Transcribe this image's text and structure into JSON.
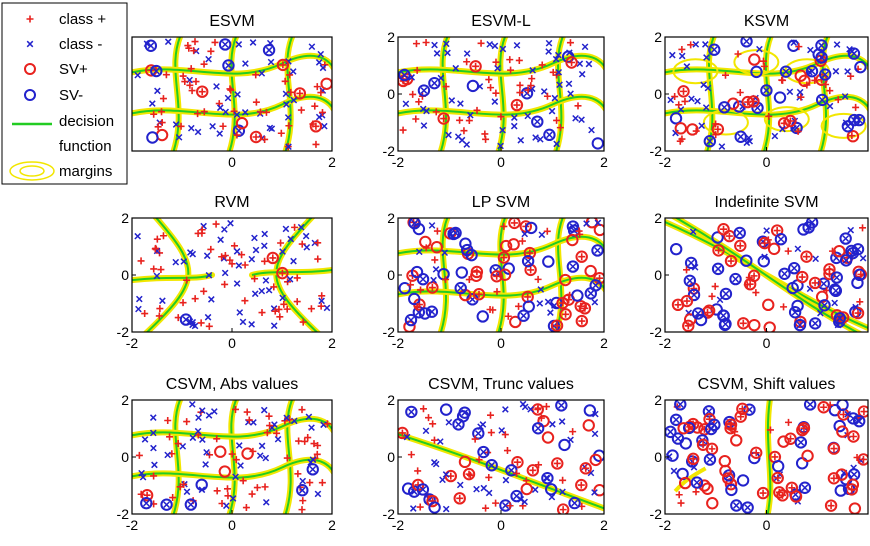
{
  "legend": {
    "items": [
      {
        "label": "class +",
        "marker": "plus",
        "color": "#e8221e"
      },
      {
        "label": "class -",
        "marker": "x",
        "color": "#2222cc"
      },
      {
        "label": "SV+",
        "marker": "circle",
        "color": "#e8221e"
      },
      {
        "label": "SV-",
        "marker": "circle",
        "color": "#2222cc"
      },
      {
        "label": "decision",
        "label2": "function",
        "marker": "line",
        "color": "#22cc22"
      },
      {
        "label": "margins",
        "marker": "ellipse",
        "color": "#f2e600"
      }
    ]
  },
  "colors": {
    "class_pos": "#e8221e",
    "class_neg": "#2222cc",
    "decision": "#22cc22",
    "margin": "#f2e600"
  },
  "chart_data": [
    {
      "type": "scatter",
      "title": "ESVM",
      "xlim": [
        -2,
        2
      ],
      "ylim": [
        -2,
        2
      ],
      "xticks": [],
      "yticks": [],
      "last_xtick_label": "2",
      "sv_level": "low",
      "pattern": "checker"
    },
    {
      "type": "scatter",
      "title": "ESVM-L",
      "xlim": [
        -2,
        2
      ],
      "ylim": [
        -2,
        2
      ],
      "xticks": [
        -2,
        0,
        2
      ],
      "yticks": [
        -2,
        0,
        2
      ],
      "sv_level": "low",
      "pattern": "checker"
    },
    {
      "type": "scatter",
      "title": "KSVM",
      "xlim": [
        -2,
        2
      ],
      "ylim": [
        -2,
        2
      ],
      "xticks": [
        -2,
        0
      ],
      "yticks": [
        -2,
        0,
        2
      ],
      "sv_level": "med",
      "pattern": "ovals"
    },
    {
      "type": "scatter",
      "title": "RVM",
      "xlim": [
        -2,
        2
      ],
      "ylim": [
        -2,
        2
      ],
      "xticks": [
        -2,
        0,
        2
      ],
      "yticks": [
        -2,
        0,
        2
      ],
      "sv_level": "none",
      "pattern": "cross"
    },
    {
      "type": "scatter",
      "title": "LP SVM",
      "xlim": [
        -2,
        2
      ],
      "ylim": [
        -2,
        2
      ],
      "xticks": [
        -2,
        0,
        2
      ],
      "yticks": [
        -2,
        0,
        2
      ],
      "sv_level": "high",
      "pattern": "checker"
    },
    {
      "type": "scatter",
      "title": "Indefinite SVM",
      "xlim": [
        -2,
        2
      ],
      "ylim": [
        -2,
        2
      ],
      "xticks": [
        -2,
        0
      ],
      "yticks": [
        -2,
        0,
        2
      ],
      "sv_level": "high",
      "pattern": "diagonal"
    },
    {
      "type": "scatter",
      "title": "CSVM, Abs values",
      "xlim": [
        -2,
        2
      ],
      "ylim": [
        -2,
        2
      ],
      "xticks": [
        -2,
        0,
        2
      ],
      "yticks": [
        -2,
        0,
        2
      ],
      "sv_level": "low",
      "pattern": "checker"
    },
    {
      "type": "scatter",
      "title": "CSVM, Trunc values",
      "xlim": [
        -2,
        2
      ],
      "ylim": [
        -2,
        2
      ],
      "xticks": [
        -2,
        0,
        2
      ],
      "yticks": [
        -2,
        0,
        2
      ],
      "sv_level": "med",
      "pattern": "line"
    },
    {
      "type": "scatter",
      "title": "CSVM, Shift values",
      "xlim": [
        -2,
        2
      ],
      "ylim": [
        -2,
        2
      ],
      "xticks": [
        -2,
        0
      ],
      "yticks": [
        -2,
        0,
        2
      ],
      "sv_level": "high",
      "pattern": "vertical"
    }
  ]
}
